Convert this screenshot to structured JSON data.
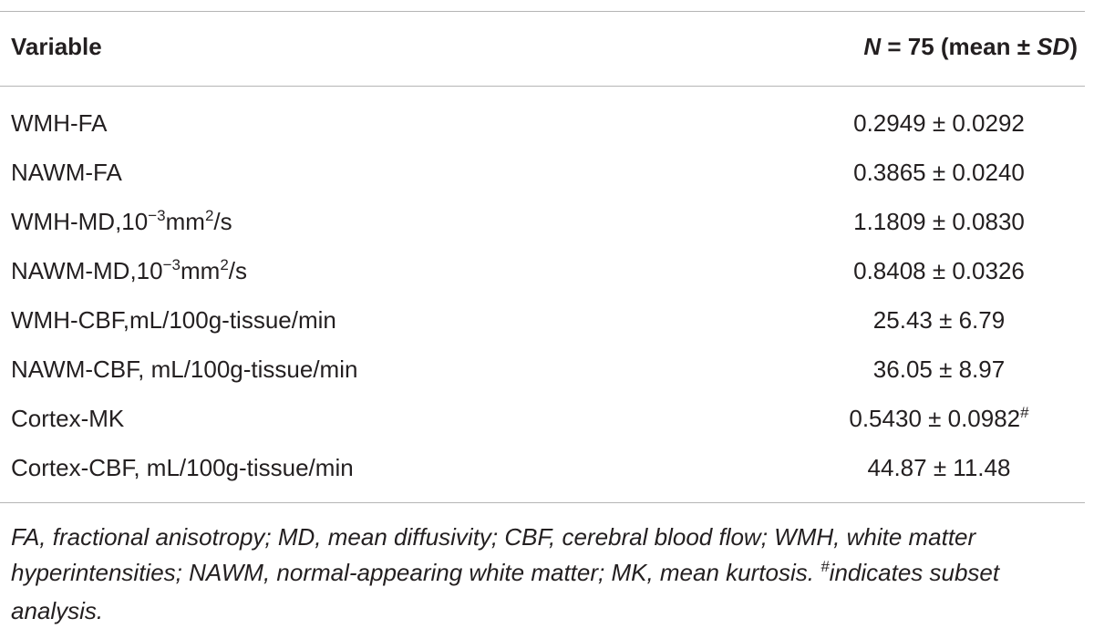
{
  "table": {
    "header": {
      "variable": "Variable",
      "value": [
        "N",
        " = 75 (mean ± ",
        "SD",
        ")"
      ]
    },
    "rows": [
      {
        "variable": [
          "WMH-FA"
        ],
        "value": [
          "0.2949 ± 0.0292"
        ]
      },
      {
        "variable": [
          "NAWM-FA"
        ],
        "value": [
          "0.3865 ± 0.0240"
        ]
      },
      {
        "variable": [
          "WMH-MD,10",
          "−3",
          "mm",
          "2",
          "/s"
        ],
        "value": [
          "1.1809 ± 0.0830"
        ]
      },
      {
        "variable": [
          "NAWM-MD,10",
          "−3",
          "mm",
          "2",
          "/s"
        ],
        "value": [
          "0.8408 ± 0.0326"
        ]
      },
      {
        "variable": [
          "WMH-CBF,mL/100g-tissue/min"
        ],
        "value": [
          "25.43 ± 6.79"
        ]
      },
      {
        "variable": [
          "NAWM-CBF, mL/100g-tissue/min"
        ],
        "value": [
          "36.05 ± 8.97"
        ]
      },
      {
        "variable": [
          "Cortex-MK"
        ],
        "value": [
          "0.5430 ± 0.0982",
          "#"
        ]
      },
      {
        "variable": [
          "Cortex-CBF, mL/100g-tissue/min"
        ],
        "value": [
          "44.87 ± 11.48"
        ]
      }
    ],
    "footnote": [
      "FA, fractional anisotropy; MD, mean diffusivity; CBF, cerebral blood flow; WMH, white matter hyperintensities; NAWM, normal-appearing white matter; MK, mean kurtosis. ",
      "#",
      "indicates subset analysis."
    ]
  }
}
